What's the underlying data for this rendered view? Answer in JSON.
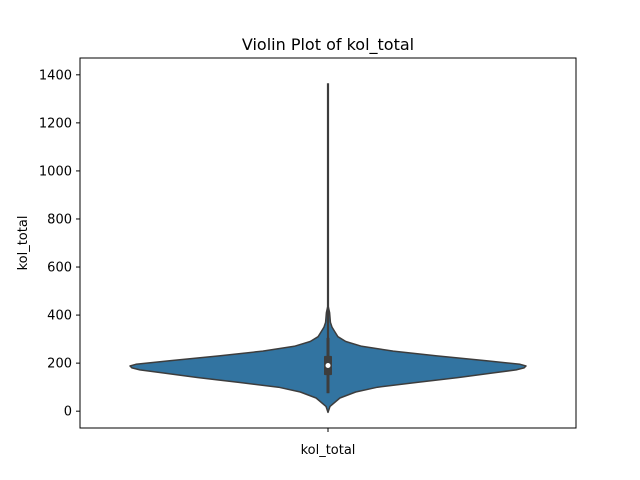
{
  "chart_data": {
    "type": "violin",
    "title": "Violin Plot of kol_total",
    "xlabel": "",
    "ylabel": "kol_total",
    "categories": [
      "kol_total"
    ],
    "ylim": [
      -70,
      1470
    ],
    "yticks": [
      0,
      200,
      400,
      600,
      800,
      1000,
      1200,
      1400
    ],
    "grid": false,
    "legend": "none",
    "color": "#3274a1",
    "edge_color": "#3d3d3d",
    "box": {
      "whisker_low": 75,
      "q1": 150,
      "median": 190,
      "q3": 230,
      "whisker_high": 305,
      "max": 1365
    },
    "density": [
      {
        "y": -5,
        "w": 0.0
      },
      {
        "y": 20,
        "w": 0.01
      },
      {
        "y": 55,
        "w": 0.06
      },
      {
        "y": 80,
        "w": 0.14
      },
      {
        "y": 100,
        "w": 0.25
      },
      {
        "y": 120,
        "w": 0.45
      },
      {
        "y": 140,
        "w": 0.66
      },
      {
        "y": 160,
        "w": 0.84
      },
      {
        "y": 172,
        "w": 0.95
      },
      {
        "y": 180,
        "w": 0.99
      },
      {
        "y": 188,
        "w": 1.0
      },
      {
        "y": 195,
        "w": 0.97
      },
      {
        "y": 210,
        "w": 0.8
      },
      {
        "y": 230,
        "w": 0.55
      },
      {
        "y": 250,
        "w": 0.33
      },
      {
        "y": 270,
        "w": 0.17
      },
      {
        "y": 290,
        "w": 0.09
      },
      {
        "y": 310,
        "w": 0.05
      },
      {
        "y": 330,
        "w": 0.035
      },
      {
        "y": 350,
        "w": 0.02
      },
      {
        "y": 370,
        "w": 0.012
      },
      {
        "y": 390,
        "w": 0.01
      },
      {
        "y": 410,
        "w": 0.008
      },
      {
        "y": 425,
        "w": 0.004
      },
      {
        "y": 440,
        "w": 0.0
      }
    ]
  }
}
